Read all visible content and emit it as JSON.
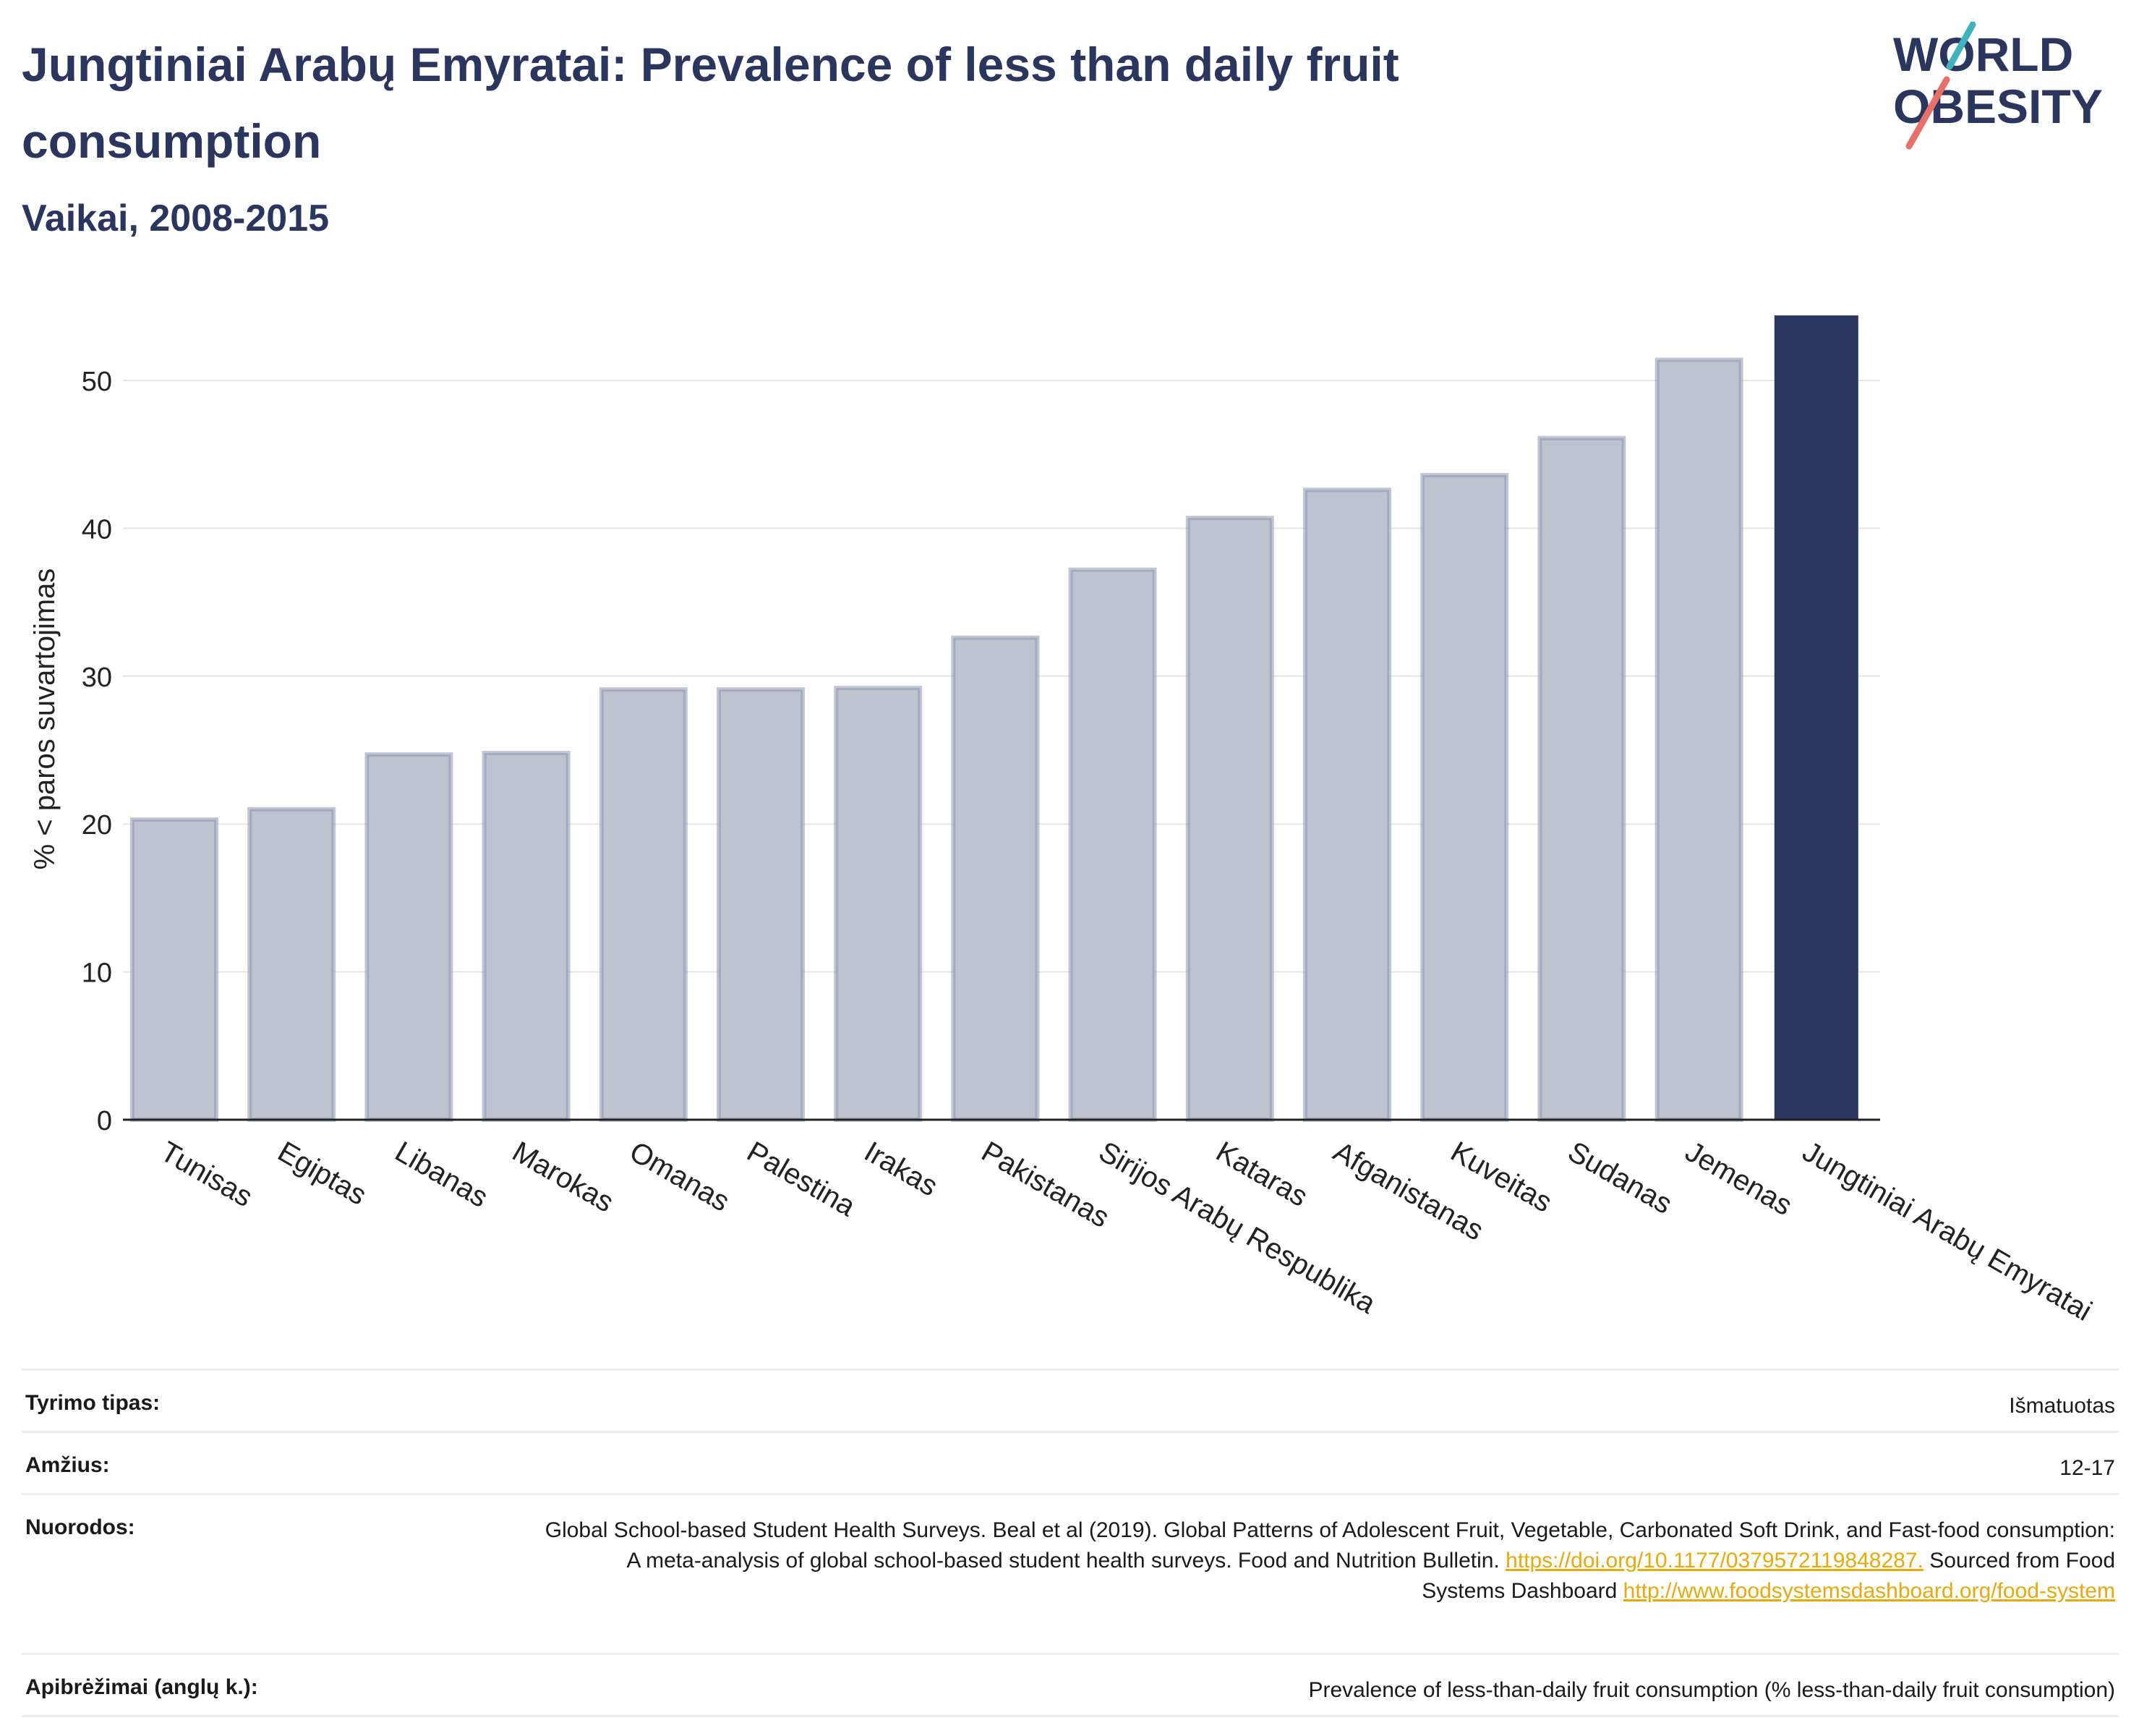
{
  "header": {
    "title": "Jungtiniai Arabų Emyratai: Prevalence of less than daily fruit consumption",
    "subtitle": "Vaikai, 2008-2015"
  },
  "logo": {
    "line1": "WORLD",
    "line2": "OBESITY",
    "icon": "world-obesity-logo"
  },
  "colors": {
    "highlight": "#2a365e",
    "bar": "#bfc3d0",
    "bar_stroke": "#8e97b2",
    "link": "#e7a90c"
  },
  "chart_data": {
    "type": "bar",
    "title": "Jungtiniai Arabų Emyratai: Prevalence of less than daily fruit consumption",
    "subtitle": "Vaikai, 2008-2015",
    "xlabel": "",
    "ylabel": "% < paros suvartojimas",
    "ylim": [
      0,
      55
    ],
    "yticks": [
      0,
      10,
      20,
      30,
      40,
      50
    ],
    "grid": true,
    "highlight": "Jungtiniai Arabų Emyratai",
    "categories": [
      "Tunisas",
      "Egiptas",
      "Libanas",
      "Marokas",
      "Omanas",
      "Palestina",
      "Irakas",
      "Pakistanas",
      "Sirijos Arabų Respublika",
      "Kataras",
      "Afganistanas",
      "Kuveitas",
      "Sudanas",
      "Jemenas",
      "Jungtiniai Arabų Emyratai"
    ],
    "values": [
      20.3,
      21.0,
      24.7,
      24.8,
      29.1,
      29.1,
      29.2,
      32.6,
      37.2,
      40.7,
      42.6,
      43.6,
      46.1,
      51.4,
      54.4
    ]
  },
  "meta": {
    "survey_type_label": "Tyrimo tipas:",
    "survey_type_value": "Išmatuotas",
    "age_label": "Amžius:",
    "age_value": "12-17",
    "refs_label": "Nuorodos:",
    "refs_text1": "Global School-based Student Health Surveys. Beal et al (2019). Global Patterns of Adolescent Fruit, Vegetable, Carbonated Soft Drink, and Fast-food consumption: A meta-analysis of global school-based student health surveys. Food and Nutrition Bulletin.",
    "refs_link1": "https://doi.org/10.1177/0379572119848287.",
    "refs_text2": " Sourced from Food Systems Dashboard ",
    "refs_link2": "http://www.foodsystemsdashboard.org/food-system",
    "definitions_label": "Apibrėžimai (anglų k.):",
    "definitions_value": "Prevalence of less-than-daily fruit consumption (% less-than-daily fruit consumption)"
  }
}
